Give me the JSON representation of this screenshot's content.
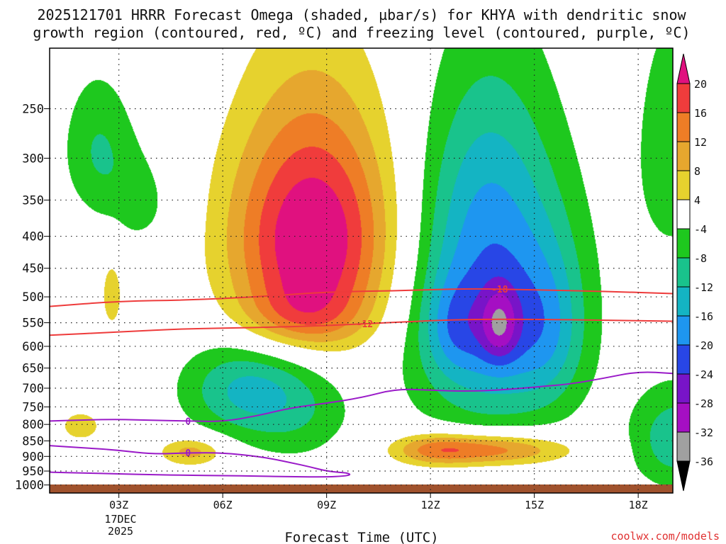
{
  "title_lines": [
    "2025121701 HRRR Forecast Omega (shaded, µbar/s) for KHYA with dendritic snow",
    "growth region (contoured, red, ºC) and freezing level (contoured, purple, ºC)"
  ],
  "xlabel": "Forecast Time (UTC)",
  "credit": "coolwx.com/models",
  "date_label": [
    "17DEC",
    "2025"
  ],
  "colors": {
    "ground": "#a0522d",
    "red_contour": "#ee3b3b",
    "purple_contour": "#9a1ac8",
    "grid": "#222222"
  },
  "chart_data": {
    "type": "heatmap",
    "xlim": [
      1,
      19
    ],
    "ylim_hpa": [
      1030,
      200
    ],
    "x_ticks": [
      {
        "t": 3,
        "label": "03Z"
      },
      {
        "t": 6,
        "label": "06Z"
      },
      {
        "t": 9,
        "label": "09Z"
      },
      {
        "t": 12,
        "label": "12Z"
      },
      {
        "t": 15,
        "label": "15Z"
      },
      {
        "t": 18,
        "label": "18Z"
      }
    ],
    "y_ticks": [
      {
        "p": 250,
        "label": "250"
      },
      {
        "p": 300,
        "label": "300"
      },
      {
        "p": 350,
        "label": "350"
      },
      {
        "p": 400,
        "label": "400"
      },
      {
        "p": 450,
        "label": "450"
      },
      {
        "p": 500,
        "label": "500"
      },
      {
        "p": 550,
        "label": "550"
      },
      {
        "p": 600,
        "label": "600"
      },
      {
        "p": 650,
        "label": "650"
      },
      {
        "p": 700,
        "label": "700"
      },
      {
        "p": 750,
        "label": "750"
      },
      {
        "p": 800,
        "label": "800"
      },
      {
        "p": 850,
        "label": "850"
      },
      {
        "p": 900,
        "label": "900"
      },
      {
        "p": 950,
        "label": "950"
      },
      {
        "p": 1000,
        "label": "1000"
      }
    ],
    "colorbar": [
      {
        "from": 20,
        "to": 99,
        "color": "#e0117f",
        "label": "20"
      },
      {
        "from": 16,
        "to": 20,
        "color": "#f03c3c",
        "label": "16"
      },
      {
        "from": 12,
        "to": 16,
        "color": "#ee7d26",
        "label": "12"
      },
      {
        "from": 8,
        "to": 12,
        "color": "#e6a72e",
        "label": "8"
      },
      {
        "from": 4,
        "to": 8,
        "color": "#e6d22e",
        "label": "4"
      },
      {
        "from": -4,
        "to": 4,
        "color": "#ffffff",
        "label": "-4"
      },
      {
        "from": -8,
        "to": -4,
        "color": "#1ec81e",
        "label": "-8"
      },
      {
        "from": -12,
        "to": -8,
        "color": "#19c38c",
        "label": "-12"
      },
      {
        "from": -16,
        "to": -12,
        "color": "#14b4c3",
        "label": "-16"
      },
      {
        "from": -20,
        "to": -16,
        "color": "#1e96f0",
        "label": "-20"
      },
      {
        "from": -24,
        "to": -20,
        "color": "#2846e6",
        "label": "-24"
      },
      {
        "from": -28,
        "to": -24,
        "color": "#7814c8",
        "label": "-28"
      },
      {
        "from": -32,
        "to": -28,
        "color": "#a50fc3",
        "label": "-32"
      },
      {
        "from": -36,
        "to": -32,
        "color": "#a0a0a0",
        "label": "-36"
      },
      {
        "from": -99,
        "to": -36,
        "color": "#000000",
        "label": ""
      }
    ],
    "omega_blobs": [
      {
        "t": 8.6,
        "p": 405,
        "st": 1.65,
        "sp": 125,
        "amp": 25,
        "rot": -0.35
      },
      {
        "t": 8.2,
        "p": 540,
        "st": 1.2,
        "sp": 45,
        "amp": 7
      },
      {
        "t": 13.8,
        "p": 525,
        "st": 1.7,
        "sp": 190,
        "amp": -19
      },
      {
        "t": 14.0,
        "p": 555,
        "st": 0.4,
        "sp": 55,
        "amp": -13
      },
      {
        "t": 12.7,
        "p": 555,
        "st": 0.6,
        "sp": 70,
        "amp": -7
      },
      {
        "t": 15.4,
        "p": 560,
        "st": 0.7,
        "sp": 110,
        "amp": -7
      },
      {
        "t": 13.6,
        "p": 330,
        "st": 1.2,
        "sp": 100,
        "amp": -5
      },
      {
        "t": 6.6,
        "p": 700,
        "st": 1.3,
        "sp": 90,
        "amp": -12,
        "rot": 0.25
      },
      {
        "t": 8.2,
        "p": 760,
        "st": 1.2,
        "sp": 120,
        "amp": -6
      },
      {
        "t": 2.4,
        "p": 290,
        "st": 0.75,
        "sp": 55,
        "amp": -8
      },
      {
        "t": 3.7,
        "p": 355,
        "st": 0.75,
        "sp": 50,
        "amp": -5
      },
      {
        "t": 13.9,
        "p": 878,
        "st": 1.5,
        "sp": 38,
        "amp": 15
      },
      {
        "t": 12.1,
        "p": 878,
        "st": 0.9,
        "sp": 38,
        "amp": 10
      },
      {
        "t": 5.1,
        "p": 885,
        "st": 0.65,
        "sp": 33,
        "amp": 10
      },
      {
        "t": 1.9,
        "p": 805,
        "st": 0.5,
        "sp": 38,
        "amp": 6
      },
      {
        "t": 2.8,
        "p": 495,
        "st": 0.25,
        "sp": 55,
        "amp": 6
      },
      {
        "t": 19.0,
        "p": 290,
        "st": 0.8,
        "sp": 100,
        "amp": -7
      },
      {
        "t": 19.1,
        "p": 845,
        "st": 0.95,
        "sp": 115,
        "amp": -11
      }
    ],
    "contours": [
      {
        "name": "dgz-upper",
        "value": "-18",
        "color": "red",
        "t": [
          1,
          3,
          5,
          7,
          9,
          11,
          13,
          15,
          17,
          19
        ],
        "p": [
          518,
          508,
          506,
          500,
          491,
          489,
          485,
          487,
          490,
          494
        ],
        "label_at": 14.0
      },
      {
        "name": "dgz-lower",
        "value": "-12",
        "color": "red",
        "t": [
          1,
          3,
          5,
          7,
          9,
          11,
          13,
          15,
          17,
          19
        ],
        "p": [
          576,
          569,
          562,
          560,
          556,
          549,
          543,
          543,
          545,
          547
        ],
        "label_at": 10.1
      },
      {
        "name": "freezing-upper",
        "value": "0",
        "color": "purple",
        "t": [
          1,
          2,
          3,
          4,
          5,
          6,
          7,
          8,
          9,
          10,
          11,
          12,
          13,
          14,
          15,
          16,
          17,
          18,
          19
        ],
        "p": [
          790,
          787,
          785,
          788,
          790,
          792,
          775,
          752,
          740,
          725,
          702,
          705,
          708,
          705,
          697,
          690,
          675,
          658,
          663
        ],
        "label_at": 5.0
      },
      {
        "name": "freezing-lower",
        "value": "0",
        "color": "purple",
        "t": [
          1,
          2,
          3,
          4,
          5,
          6,
          7,
          7.5,
          8,
          8.5,
          9,
          9.4,
          9.6,
          9.7,
          9.5,
          9.0,
          8.0,
          7.0,
          6.0,
          5.0,
          4.0,
          3.0,
          2.0,
          1.0
        ],
        "p": [
          865,
          872,
          880,
          893,
          888,
          888,
          900,
          910,
          922,
          935,
          950,
          955,
          957,
          963,
          968,
          971,
          970,
          968,
          966,
          965,
          963,
          960,
          957,
          954
        ],
        "label_at": 5.0
      }
    ]
  }
}
